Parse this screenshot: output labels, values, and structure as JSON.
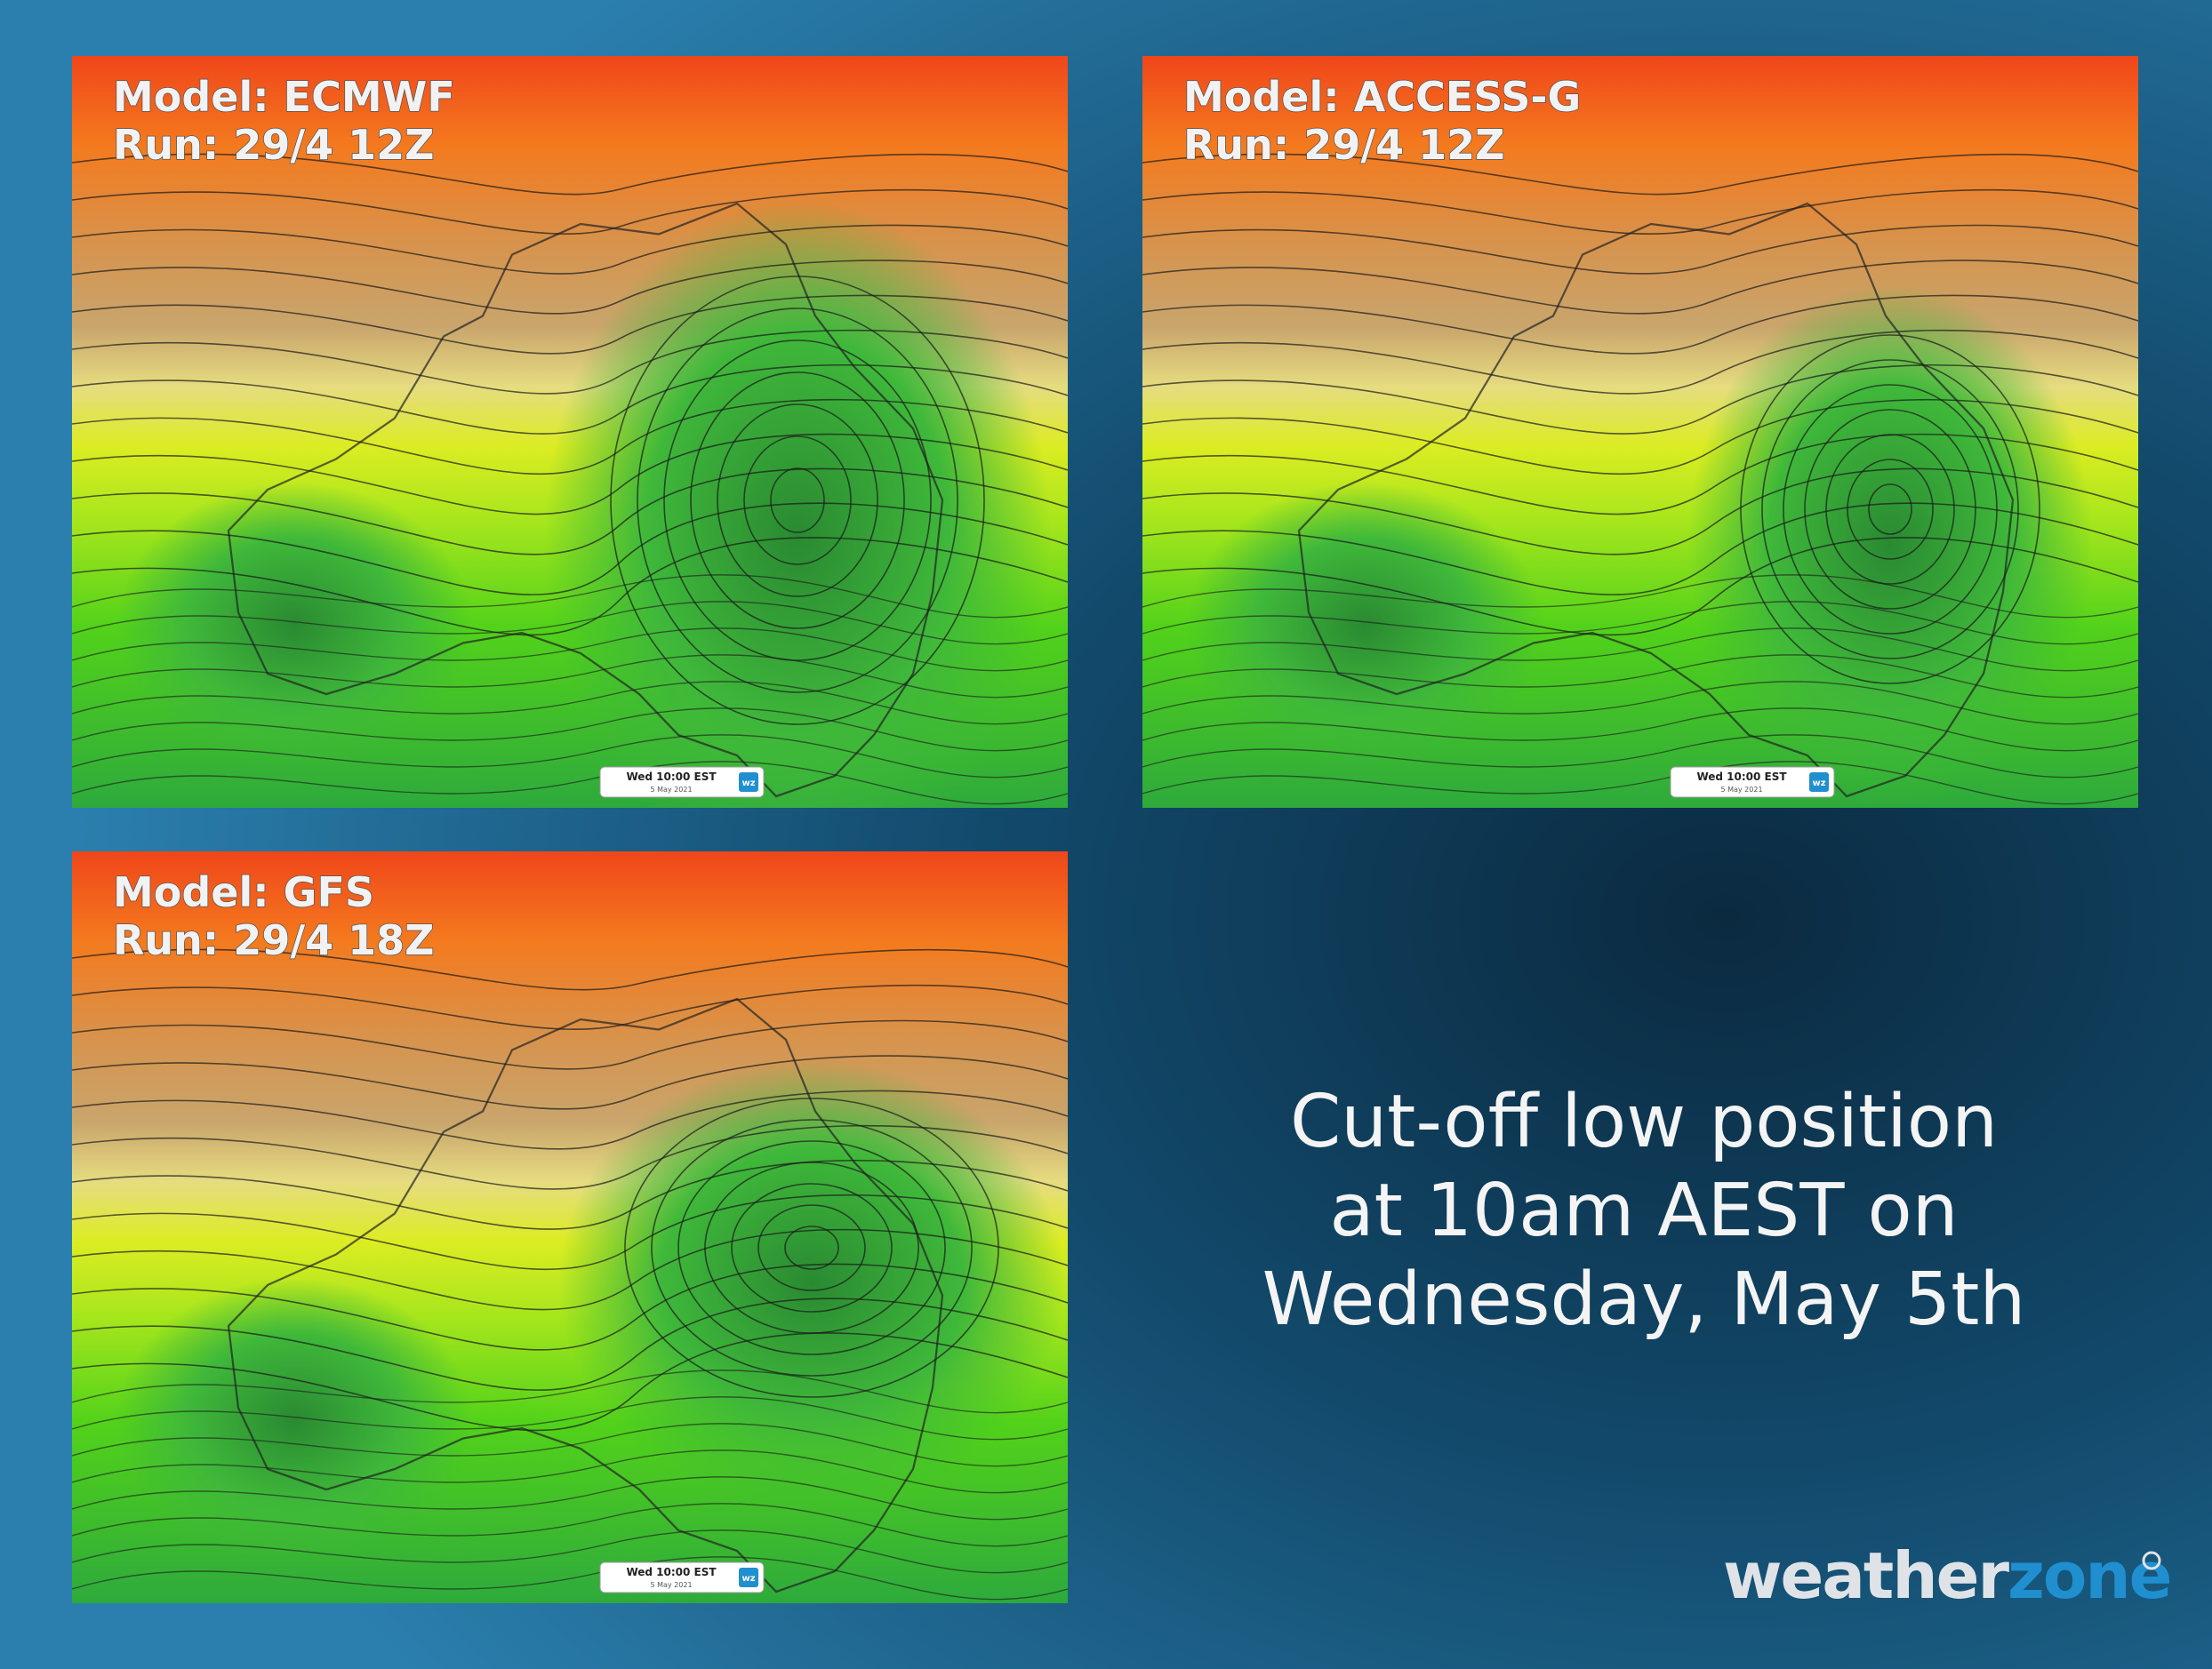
{
  "panels": [
    {
      "model": "Model: ECMWF",
      "run": "Run: 29/4 12Z",
      "time": "Wed 10:00 EST",
      "date": "5 May 2021",
      "badge": "wz"
    },
    {
      "model": "Model: ACCESS-G",
      "run": "Run: 29/4 12Z",
      "time": "Wed 10:00 EST",
      "date": "5 May 2021",
      "badge": "wz"
    },
    {
      "model": "Model: GFS",
      "run": "Run: 29/4 18Z",
      "time": "Wed 10:00 EST",
      "date": "5 May 2021",
      "badge": "wz"
    }
  ],
  "caption": [
    "Cut-off low position",
    "at 10am AEST on",
    "Wednesday, May 5th"
  ],
  "logo": {
    "weather": "weather",
    "zone": "zone"
  }
}
